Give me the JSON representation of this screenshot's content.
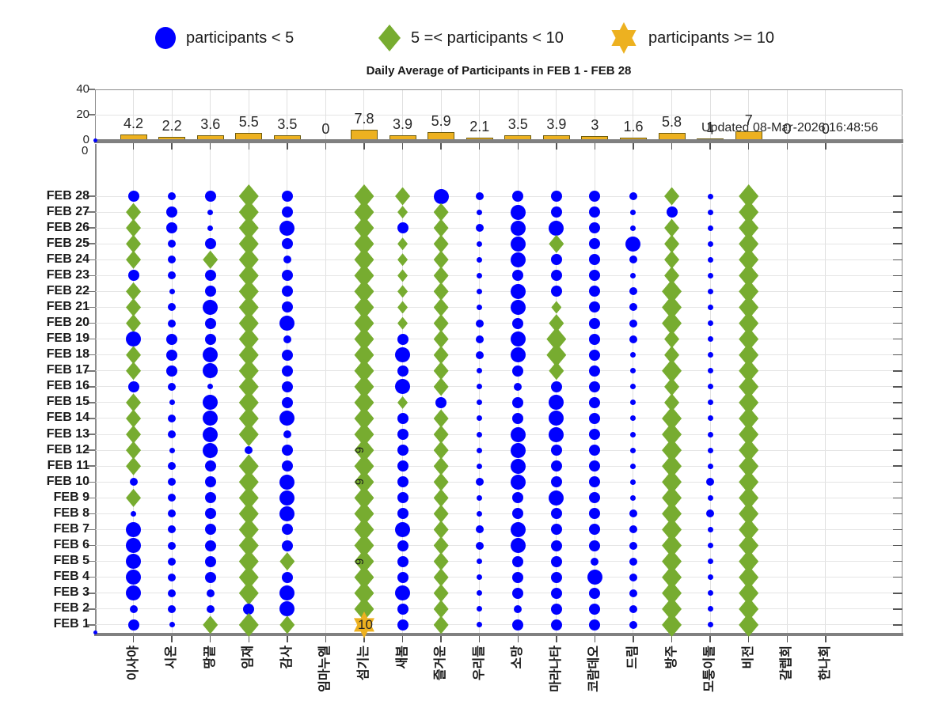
{
  "title": "Daily Average of Participants in FEB 1 - FEB 28",
  "updated_label": "Updated 08-Mar-2026 16:48:56",
  "legend": {
    "items": [
      {
        "marker": "circle-icon",
        "color": "#0000ff",
        "label": "participants < 5"
      },
      {
        "marker": "diamond-icon",
        "color": "#77ac30",
        "label": "5 =< participants < 10"
      },
      {
        "marker": "star-icon",
        "color": "#edb120",
        "label": "participants >= 10"
      }
    ]
  },
  "chart_data": {
    "type": "combo",
    "categories": [
      "이사야",
      "시온",
      "땅끝",
      "임재",
      "감사",
      "임마누엘",
      "섬기는",
      "새봄",
      "즐거운",
      "우리들",
      "소망",
      "마라나타",
      "코람데오",
      "드림",
      "방주",
      "모퉁이돌",
      "비전",
      "갈렙회",
      "한나회"
    ],
    "bar": {
      "type": "bar",
      "values": [
        4.2,
        2.2,
        3.6,
        5.5,
        3.5,
        0,
        7.8,
        3.9,
        5.9,
        2.1,
        3.5,
        3.9,
        3,
        1.6,
        5.8,
        1,
        7,
        0,
        0
      ],
      "labels": [
        "4.2",
        "2.2",
        "3.6",
        "5.5",
        "3.5",
        "0",
        "7.8",
        "3.9",
        "5.9",
        "2.1",
        "3.5",
        "3.9",
        "3",
        "1.6",
        "5.8",
        "1",
        "7",
        "0",
        "0"
      ],
      "ylim": [
        0,
        40
      ],
      "yticks": [
        "40",
        "20",
        "0"
      ],
      "extra_tick_below": "0",
      "bar_color": "#edb120",
      "bar_edge_color": "#6e5c0e",
      "grid": "on"
    },
    "scatter": {
      "type": "scatter",
      "rows": [
        "FEB 28",
        "FEB 27",
        "FEB 26",
        "FEB 25",
        "FEB 24",
        "FEB 23",
        "FEB 22",
        "FEB 21",
        "FEB 20",
        "FEB 19",
        "FEB 18",
        "FEB 17",
        "FEB 16",
        "FEB 15",
        "FEB 14",
        "FEB 13",
        "FEB 12",
        "FEB 11",
        "FEB 10",
        "FEB 9",
        "FEB 8",
        "FEB 7",
        "FEB 6",
        "FEB 5",
        "FEB 4",
        "FEB 3",
        "FEB 2",
        "FEB 1"
      ],
      "cell_code_rule": "b=blue circle (participants < 5), g=green diamond (5 =< participants < 10), s=orange star (participants >= 10); digit = relative marker size 1-4; empty = no meeting",
      "columns": [
        {
          "name": "이사야",
          "cells": [
            "b3",
            "g3",
            "g3",
            "g3",
            "g3",
            "b3",
            "g3",
            "g3",
            "g3",
            "b4",
            "g3",
            "g3",
            "b3",
            "g3",
            "g3",
            "g3",
            "g3",
            "g3",
            "b2",
            "g3",
            "b1",
            "b4",
            "b4",
            "b4",
            "b4",
            "b4",
            "b2",
            "b3"
          ]
        },
        {
          "name": "시온",
          "cells": [
            "b2",
            "b3",
            "b3",
            "b2",
            "b2",
            "b2",
            "b1",
            "b2",
            "b2",
            "b3",
            "b3",
            "b3",
            "b2",
            "b1",
            "b2",
            "b2",
            "b1",
            "b2",
            "b2",
            "b2",
            "b2",
            "b2",
            "b2",
            "b2",
            "b2",
            "b2",
            "b2",
            "b1"
          ]
        },
        {
          "name": "땅끝",
          "cells": [
            "b3",
            "b1",
            "b1",
            "b3",
            "g3",
            "b3",
            "b3",
            "b4",
            "b3",
            "b3",
            "b4",
            "b4",
            "b1",
            "b4",
            "b4",
            "b4",
            "b4",
            "b3",
            "b3",
            "b3",
            "b3",
            "b3",
            "b3",
            "b3",
            "b3",
            "b2",
            "b2",
            "g3"
          ]
        },
        {
          "name": "임재",
          "cells": [
            "g4",
            "g4",
            "g4",
            "g4",
            "g4",
            "g4",
            "g4",
            "g4",
            "g4",
            "g4",
            "g4",
            "g4",
            "g4",
            "g4",
            "g4",
            "g4",
            "b2",
            "g4",
            "g4",
            "g4",
            "g4",
            "g4",
            "g4",
            "g4",
            "g4",
            "g4",
            "b3",
            "g4"
          ]
        },
        {
          "name": "감사",
          "cells": [
            "b3",
            "b3",
            "b4",
            "b3",
            "b2",
            "b3",
            "b3",
            "b3",
            "b4",
            "b2",
            "b3",
            "b3",
            "b3",
            "b3",
            "b4",
            "b2",
            "b3",
            "b3",
            "b4",
            "b4",
            "b4",
            "b3",
            "b3",
            "g3",
            "b3",
            "b4",
            "b4",
            "g3"
          ]
        },
        {
          "name": "임마누엘",
          "cells": [
            "",
            "",
            "",
            "",
            "",
            "",
            "",
            "",
            "",
            "",
            "",
            "",
            "",
            "",
            "",
            "",
            "",
            "",
            "",
            "",
            "",
            "",
            "",
            "",
            "",
            "",
            "",
            ""
          ]
        },
        {
          "name": "섬기는",
          "cells": [
            "g4",
            "g4",
            "g4",
            "g4",
            "g4",
            "g4",
            "g4",
            "g4",
            "g4",
            "g4",
            "g4",
            "g4",
            "g4",
            "g4",
            "g4",
            "g4",
            "g4",
            "g4",
            "g4",
            "g4",
            "g4",
            "g4",
            "g4",
            "g4",
            "g4",
            "g4",
            "g4",
            "s4"
          ]
        },
        {
          "name": "새봄",
          "cells": [
            "g3",
            "g2",
            "b3",
            "g2",
            "g2",
            "g2",
            "g2",
            "g2",
            "g2",
            "b3",
            "b4",
            "b3",
            "b4",
            "g2",
            "b3",
            "b3",
            "b3",
            "b3",
            "b3",
            "b3",
            "b3",
            "b4",
            "b3",
            "b3",
            "b3",
            "b4",
            "b3",
            "b3"
          ]
        },
        {
          "name": "즐거운",
          "cells": [
            "b4",
            "g3",
            "g3",
            "g3",
            "g3",
            "g3",
            "g3",
            "g3",
            "g3",
            "g3",
            "g3",
            "g3",
            "g3",
            "b3",
            "g3",
            "g3",
            "g3",
            "g3",
            "g3",
            "g3",
            "g3",
            "g3",
            "g3",
            "g3",
            "g3",
            "g3",
            "g3",
            "g3"
          ]
        },
        {
          "name": "우리들",
          "cells": [
            "b2",
            "b1",
            "b2",
            "b1",
            "b1",
            "b1",
            "b1",
            "b1",
            "b2",
            "b2",
            "b2",
            "b1",
            "b1",
            "b1",
            "b1",
            "b1",
            "b1",
            "b1",
            "b2",
            "b1",
            "b1",
            "b2",
            "b2",
            "b1",
            "b1",
            "b1",
            "b1",
            "b1"
          ]
        },
        {
          "name": "소망",
          "cells": [
            "b3",
            "b4",
            "b4",
            "b4",
            "b4",
            "b3",
            "b4",
            "b4",
            "b3",
            "b4",
            "b4",
            "b3",
            "b2",
            "b3",
            "b3",
            "b4",
            "b4",
            "b4",
            "b4",
            "b3",
            "b3",
            "b4",
            "b4",
            "b3",
            "b3",
            "b3",
            "b2",
            "b3"
          ]
        },
        {
          "name": "마라나타",
          "cells": [
            "b3",
            "b3",
            "b4",
            "g3",
            "b3",
            "b3",
            "b3",
            "g2",
            "g3",
            "g4",
            "g4",
            "g3",
            "b3",
            "b4",
            "b4",
            "b4",
            "b3",
            "b3",
            "b3",
            "b4",
            "b3",
            "b3",
            "b3",
            "b3",
            "b3",
            "b3",
            "b3",
            "b3"
          ]
        },
        {
          "name": "코람데오",
          "cells": [
            "b3",
            "b3",
            "b3",
            "b3",
            "b3",
            "b3",
            "b3",
            "b3",
            "b3",
            "b3",
            "b3",
            "b3",
            "b3",
            "b3",
            "b3",
            "b3",
            "b3",
            "b3",
            "b3",
            "b3",
            "b3",
            "b3",
            "b3",
            "b2",
            "b4",
            "b3",
            "b3",
            "b3"
          ]
        },
        {
          "name": "드림",
          "cells": [
            "b2",
            "b1",
            "b1",
            "b4",
            "b2",
            "b1",
            "b2",
            "b2",
            "b2",
            "b2",
            "b1",
            "b1",
            "b1",
            "b1",
            "b1",
            "b1",
            "b1",
            "b1",
            "b1",
            "b1",
            "b2",
            "b2",
            "b2",
            "b2",
            "b2",
            "b2",
            "b2",
            "b2"
          ]
        },
        {
          "name": "방주",
          "cells": [
            "g3",
            "b3",
            "g3",
            "g3",
            "g3",
            "g3",
            "g4",
            "g4",
            "g4",
            "g3",
            "g3",
            "g4",
            "g3",
            "g3",
            "g4",
            "g4",
            "g4",
            "g4",
            "g4",
            "g4",
            "g4",
            "g4",
            "g4",
            "g4",
            "g4",
            "g4",
            "g4",
            "g4"
          ]
        },
        {
          "name": "모퉁이돌",
          "cells": [
            "b1",
            "b1",
            "b1",
            "b1",
            "b1",
            "b1",
            "b1",
            "b1",
            "b1",
            "b1",
            "b1",
            "b1",
            "b1",
            "b1",
            "b1",
            "b1",
            "b1",
            "b1",
            "b2",
            "b1",
            "b2",
            "b1",
            "b1",
            "b1",
            "b1",
            "b1",
            "b1",
            "b1"
          ]
        },
        {
          "name": "비전",
          "cells": [
            "g4",
            "g4",
            "g4",
            "g4",
            "g4",
            "g4",
            "g4",
            "g4",
            "g4",
            "g4",
            "g4",
            "g4",
            "g4",
            "g4",
            "g4",
            "g4",
            "g4",
            "g4",
            "g4",
            "g4",
            "g4",
            "g4",
            "g4",
            "g4",
            "g4",
            "g4",
            "g4",
            "g4"
          ]
        },
        {
          "name": "갈렙회",
          "cells": [
            "",
            "",
            "",
            "",
            "",
            "",
            "",
            "",
            "",
            "",
            "",
            "",
            "",
            "",
            "",
            "",
            "",
            "",
            "",
            "",
            "",
            "",
            "",
            "",
            "",
            "",
            "",
            ""
          ]
        },
        {
          "name": "한나회",
          "cells": [
            "",
            "",
            "",
            "",
            "",
            "",
            "",
            "",
            "",
            "",
            "",
            "",
            "",
            "",
            "",
            "",
            "",
            "",
            "",
            "",
            "",
            "",
            "",
            "",
            "",
            "",
            "",
            ""
          ]
        }
      ],
      "annotations": [
        {
          "col": 6,
          "row": 16,
          "row_label": "FEB 12",
          "text": "9",
          "rotated": true
        },
        {
          "col": 6,
          "row": 18,
          "row_label": "FEB 10",
          "text": "9",
          "rotated": true
        },
        {
          "col": 6,
          "row": 23,
          "row_label": "FEB 5",
          "text": "9",
          "rotated": true
        },
        {
          "col": 6,
          "row": 27,
          "row_label": "FEB 1",
          "text": "10",
          "rotated": false
        }
      ]
    },
    "colors": {
      "blue": "#0000ff",
      "green": "#77ac30",
      "orange": "#edb120"
    }
  }
}
